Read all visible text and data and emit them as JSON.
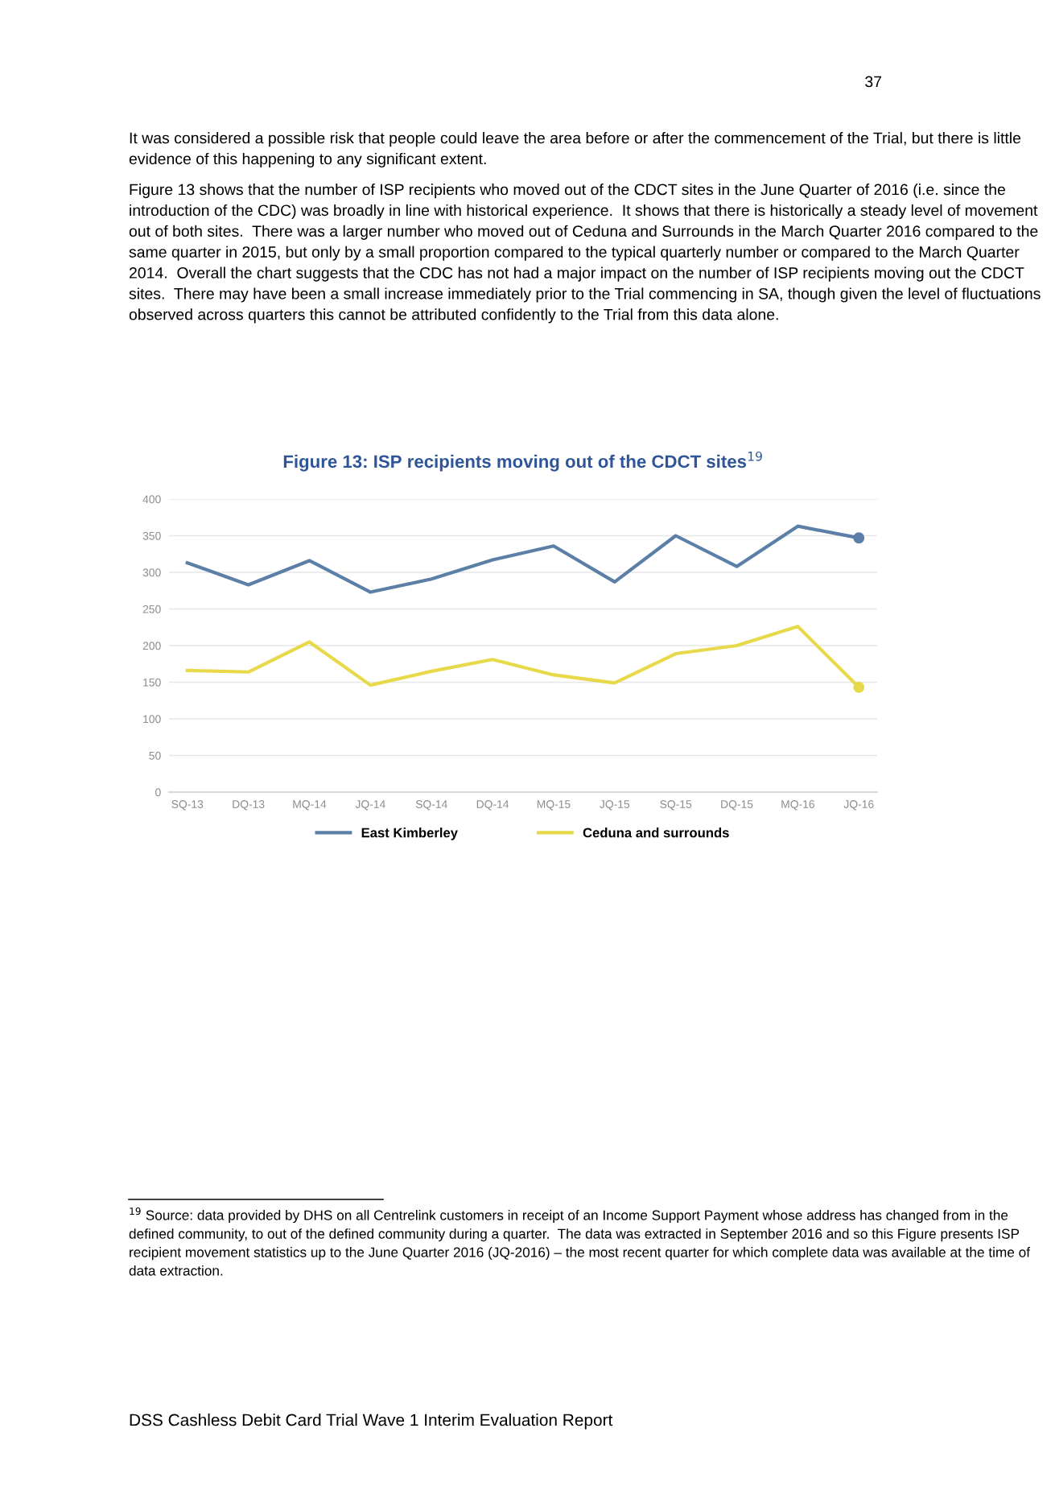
{
  "chart_data": {
    "type": "line",
    "title": "Figure 13: ISP recipients moving out of the CDCT sites$^{19}$",
    "categories": [
      "SQ-13",
      "DQ-13",
      "MQ-14",
      "JQ-14",
      "SQ-14",
      "DQ-14",
      "MQ-15",
      "JQ-15",
      "SQ-15",
      "DQ-15",
      "MQ-16",
      "JQ-16"
    ],
    "series": [
      {
        "name": "East Kimberley",
        "color": "#5b7fa6",
        "values": [
          313,
          283,
          316,
          273,
          291,
          317,
          336,
          287,
          350,
          308,
          363,
          347
        ]
      },
      {
        "name": "Ceduna and surrounds",
        "color": "#e8d94a",
        "values": [
          166,
          164,
          205,
          146,
          165,
          181,
          160,
          149,
          189,
          200,
          226,
          143
        ]
      }
    ],
    "ylim": [
      0,
      400
    ],
    "yticks": [
      0,
      50,
      100,
      150,
      200,
      250,
      300,
      350,
      400
    ],
    "grid": "y",
    "legend": "bottom",
    "line_style": "solid",
    "annotations": [
      "37",
      "It was considered a possible risk that people could leave the area before or after the commencement of the Trial, but there is little evidence of this happening to any significant extent.",
      "Figure 13 shows that the number of ISP recipients who moved out of the CDCT sites in the June Quarter of 2016 (i.e. since the introduction of the CDC) was broadly in line with historical experience.  It shows that there is historically a steady level of movement out of both sites.  There was a larger number who moved out of Ceduna and Surrounds in the March Quarter 2016 compared to the same quarter in 2015, but only by a small proportion compared to the typical quarterly number or compared to the March Quarter 2014.  Overall the chart suggests that the CDC has not had a major impact on the number of ISP recipients moving out the CDCT sites.  There may have been a small increase immediately prior to the Trial commencing in SA, though given the level of fluctuations observed across quarters this cannot be attributed confidently to the Trial from this data alone.",
      "$^{19}$ Source: data provided by DHS on all Centrelink customers in receipt of an Income Support Payment whose address has changed from in the defined community, to out of the defined community during a quarter.  The data was extracted in September 2016 and so this Figure presents ISP recipient movement statistics up to the June Quarter 2016 (JQ-2016) – the most recent quarter for which complete data was available at the time of data extraction.",
      "DSS Cashless Debit Card Trial Wave 1 Interim Evaluation Report"
    ]
  }
}
